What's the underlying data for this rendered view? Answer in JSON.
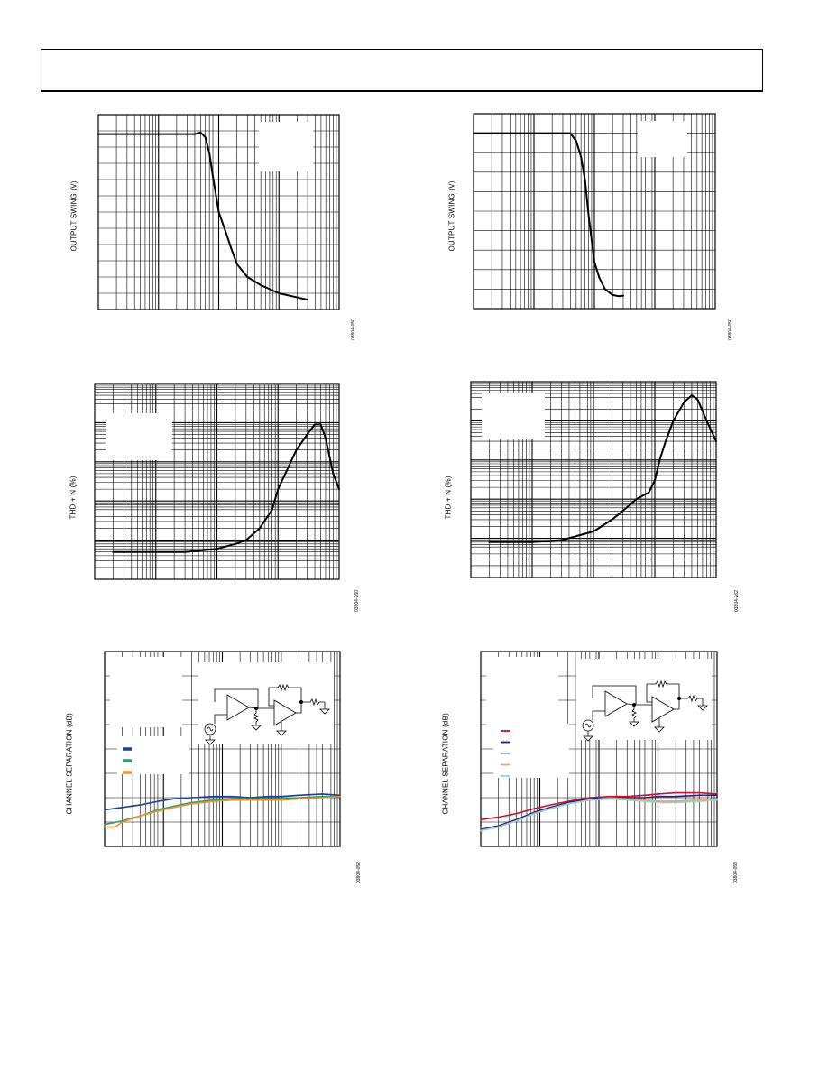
{
  "panels": [
    {
      "ylabel": "OUTPUT SWING (V)",
      "fignum": "03804-050"
    },
    {
      "ylabel": "OUTPUT SWING (V)",
      "fignum": "03804-050"
    },
    {
      "ylabel": "THD + N (%)",
      "fignum": "03804-260"
    },
    {
      "ylabel": "THD + N (%)",
      "fignum": "03804-262"
    },
    {
      "ylabel": "CHANNEL SEPARATION (dB)",
      "fignum": "03804-052"
    },
    {
      "ylabel": "CHANNEL SEPARATION (dB)",
      "fignum": "03804-053"
    }
  ],
  "chart_data": [
    {
      "type": "line",
      "ylabel": "OUTPUT SWING (V)",
      "x_scale": "log",
      "y_scale": "linear",
      "grid": true,
      "xlim": [
        1,
        10000
      ],
      "ylim": [
        0,
        6
      ],
      "series": [
        {
          "color": "#000000",
          "x": [
            1,
            10,
            40,
            50,
            60,
            70,
            80,
            100,
            130,
            160,
            200,
            300,
            500,
            1000,
            3000
          ],
          "y": [
            5.4,
            5.4,
            5.4,
            5.45,
            5.3,
            4.8,
            4.1,
            3.0,
            2.4,
            1.9,
            1.4,
            1.0,
            0.75,
            0.5,
            0.3
          ]
        }
      ]
    },
    {
      "type": "line",
      "ylabel": "OUTPUT SWING (V)",
      "x_scale": "log",
      "y_scale": "linear",
      "grid": true,
      "xlim": [
        1,
        10000
      ],
      "ylim": [
        0,
        5
      ],
      "series": [
        {
          "color": "#000000",
          "x": [
            1,
            10,
            40,
            50,
            60,
            70,
            80,
            100,
            120,
            150,
            200,
            250,
            300
          ],
          "y": [
            4.5,
            4.5,
            4.5,
            4.3,
            3.9,
            3.3,
            2.4,
            1.2,
            0.8,
            0.5,
            0.35,
            0.32,
            0.33
          ]
        }
      ]
    },
    {
      "type": "line",
      "ylabel": "THD + N (%)",
      "x_scale": "log",
      "y_scale": "log",
      "grid": true,
      "xlim": [
        0.001,
        10
      ],
      "ylim": [
        0.0001,
        10
      ],
      "series": [
        {
          "color": "#000000",
          "x": [
            0.002,
            0.01,
            0.03,
            0.1,
            0.2,
            0.3,
            0.5,
            0.8,
            1,
            2,
            3,
            4,
            5,
            6,
            8,
            10
          ],
          "y": [
            0.0005,
            0.0005,
            0.0005,
            0.0006,
            0.0008,
            0.001,
            0.002,
            0.006,
            0.02,
            0.2,
            0.5,
            0.9,
            0.9,
            0.4,
            0.05,
            0.02
          ]
        }
      ]
    },
    {
      "type": "line",
      "ylabel": "THD + N (%)",
      "x_scale": "log",
      "y_scale": "log",
      "grid": true,
      "xlim": [
        0.001,
        10
      ],
      "ylim": [
        0.0001,
        10
      ],
      "series": [
        {
          "color": "#000000",
          "x": [
            0.002,
            0.01,
            0.03,
            0.1,
            0.2,
            0.3,
            0.5,
            0.8,
            1,
            1.2,
            1.5,
            2,
            3,
            4,
            5,
            7,
            10
          ],
          "y": [
            0.0008,
            0.0008,
            0.0009,
            0.0015,
            0.003,
            0.005,
            0.01,
            0.015,
            0.03,
            0.1,
            0.3,
            1.0,
            3.0,
            4.5,
            3.5,
            1.0,
            0.3
          ]
        }
      ]
    },
    {
      "type": "line",
      "ylabel": "CHANNEL SEPARATION (dB)",
      "x_scale": "log",
      "y_scale": "linear",
      "grid": true,
      "xlim": [
        10,
        100000
      ],
      "ylim": [
        0,
        160
      ],
      "legend": "left",
      "series": [
        {
          "color": "#1f3f8f",
          "x": [
            10,
            20,
            40,
            80,
            150,
            300,
            700,
            1500,
            3000,
            6000,
            10000,
            20000,
            50000,
            100000
          ],
          "y": [
            30,
            32,
            34,
            37,
            39,
            40,
            41,
            41,
            40,
            41,
            41,
            42,
            43,
            42
          ]
        },
        {
          "color": "#2e9e6e",
          "x": [
            10,
            20,
            40,
            80,
            150,
            300,
            700,
            1500,
            3000,
            6000,
            10000,
            20000,
            50000,
            100000
          ],
          "y": [
            18,
            21,
            25,
            30,
            33,
            36,
            38,
            39,
            39,
            39,
            39,
            40,
            41,
            41
          ]
        },
        {
          "color": "#f0902f",
          "x": [
            10,
            15,
            20,
            40,
            80,
            150,
            300,
            700,
            1500,
            3000,
            6000,
            10000,
            20000,
            50000,
            100000
          ],
          "y": [
            16,
            16,
            20,
            25,
            29,
            32,
            35,
            37,
            38,
            38,
            38,
            38,
            39,
            40,
            41
          ]
        }
      ]
    },
    {
      "type": "line",
      "ylabel": "CHANNEL SEPARATION (dB)",
      "x_scale": "log",
      "y_scale": "linear",
      "grid": true,
      "xlim": [
        10,
        100000
      ],
      "ylim": [
        0,
        160
      ],
      "legend": "left",
      "series": [
        {
          "color": "#c8102e",
          "x": [
            10,
            20,
            40,
            80,
            150,
            300,
            700,
            1500,
            3000,
            6000,
            10000,
            20000,
            50000,
            100000
          ],
          "y": [
            22,
            24,
            27,
            31,
            34,
            37,
            40,
            41,
            41,
            42,
            43,
            44,
            44,
            43
          ]
        },
        {
          "color": "#2a1a8a",
          "x": [
            10,
            20,
            40,
            80,
            150,
            300,
            700,
            1500,
            3000,
            6000,
            10000,
            20000,
            50000,
            100000
          ],
          "y": [
            14,
            17,
            22,
            28,
            32,
            36,
            39,
            40,
            40,
            40,
            41,
            41,
            42,
            42
          ]
        },
        {
          "color": "#7fa6c8",
          "x": [
            10,
            20,
            40,
            80,
            150,
            300,
            700,
            1500,
            3000,
            6000,
            10000,
            20000,
            50000,
            100000
          ],
          "y": [
            13,
            16,
            21,
            27,
            31,
            35,
            38,
            40,
            39,
            38,
            37,
            37,
            38,
            39
          ]
        },
        {
          "color": "#f0a868",
          "x": [
            10,
            20,
            40,
            80,
            150,
            300,
            700,
            1500,
            3000,
            6000,
            10000,
            20000,
            50000,
            100000
          ],
          "y": [
            13,
            16,
            21,
            27,
            31,
            35,
            38,
            39,
            39,
            38,
            37,
            37,
            38,
            38
          ]
        },
        {
          "color": "#8fd6c4",
          "x": [
            10,
            20,
            40,
            80,
            150,
            300,
            700,
            1500,
            3000,
            6000,
            10000,
            20000,
            50000,
            100000
          ],
          "y": [
            13,
            16,
            21,
            27,
            31,
            35,
            38,
            39,
            38,
            37,
            36,
            36,
            37,
            38
          ]
        }
      ]
    }
  ]
}
